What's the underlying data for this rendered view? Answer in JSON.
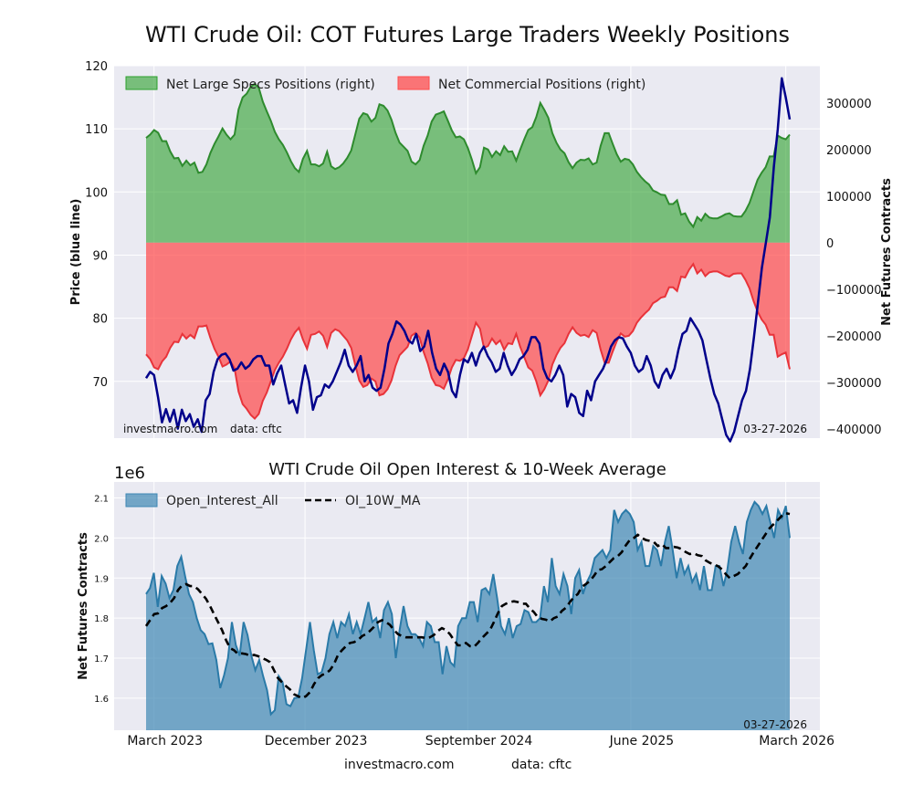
{
  "title": "WTI Crude Oil: COT Futures Large Traders Weekly Positions",
  "footer": {
    "site": "investmacro.com",
    "source": "data: cftc"
  },
  "colors": {
    "price": "#00008b",
    "specs": "#2ca02c",
    "commercial": "#ff4c4c",
    "open_interest": "#3f88b4",
    "ma": "#000000",
    "panel": "#eaeaf2"
  },
  "chart_data": [
    {
      "type": "area",
      "name": "positions",
      "title": "",
      "xlabel": "",
      "ylabel_left": "Price (blue line)",
      "ylabel_right": "Net Futures Contracts",
      "left_ylim": [
        61,
        120
      ],
      "left_ticks": [
        70,
        80,
        90,
        100,
        110,
        120
      ],
      "right_ylim": [
        -420000,
        380000
      ],
      "right_ticks": [
        -400000,
        -300000,
        -200000,
        -100000,
        0,
        100000,
        200000,
        300000
      ],
      "right_tick_labels": [
        "−400000",
        "−300000",
        "−200000",
        "−100000",
        "0",
        "100000",
        "200000",
        "300000"
      ],
      "grid": true,
      "legend_placement": "top-left",
      "annotations": {
        "site": "investmacro.com",
        "source": "data: cftc",
        "date": "03-27-2026"
      },
      "x_range_weeks": [
        0,
        162
      ],
      "series": [
        {
          "name": "Net Large Specs Positions (right)",
          "axis": "right",
          "values": [
            225000,
            232000,
            242000,
            236000,
            218000,
            218000,
            196000,
            181000,
            182000,
            165000,
            176000,
            166000,
            172000,
            150000,
            152000,
            168000,
            193000,
            212000,
            228000,
            245000,
            232000,
            222000,
            232000,
            286000,
            312000,
            320000,
            335000,
            341000,
            333000,
            303000,
            282000,
            262000,
            238000,
            222000,
            210000,
            194000,
            175000,
            160000,
            152000,
            180000,
            197000,
            168000,
            168000,
            164000,
            170000,
            195000,
            164000,
            158000,
            162000,
            170000,
            182000,
            198000,
            232000,
            266000,
            278000,
            275000,
            260000,
            268000,
            297000,
            294000,
            284000,
            264000,
            236000,
            215000,
            206000,
            197000,
            174000,
            168000,
            177000,
            208000,
            230000,
            260000,
            275000,
            278000,
            282000,
            262000,
            241000,
            226000,
            228000,
            222000,
            203000,
            178000,
            149000,
            162000,
            204000,
            200000,
            184000,
            196000,
            188000,
            207000,
            195000,
            196000,
            176000,
            200000,
            222000,
            242000,
            248000,
            270000,
            300000,
            285000,
            268000,
            235000,
            215000,
            200000,
            192000,
            173000,
            160000,
            172000,
            178000,
            177000,
            181000,
            168000,
            172000,
            208000,
            235000,
            235000,
            212000,
            190000,
            174000,
            180000,
            178000,
            168000,
            152000,
            141000,
            132000,
            125000,
            112000,
            108000,
            103000,
            102000,
            83000,
            83000,
            91000,
            60000,
            63000,
            45000,
            34000,
            55000,
            47000,
            62000,
            54000,
            52000,
            52000,
            56000,
            61000,
            63000,
            57000,
            56000,
            56000,
            68000,
            85000,
            110000,
            135000,
            150000,
            162000,
            185000,
            185000,
            230000,
            225000,
            222000,
            232000
          ],
          "fill_to": 0
        },
        {
          "name": "Net Commercial Positions (right)",
          "axis": "right",
          "values": [
            -240000,
            -250000,
            -268000,
            -272000,
            -255000,
            -245000,
            -226000,
            -213000,
            -214000,
            -196000,
            -206000,
            -198000,
            -205000,
            -180000,
            -180000,
            -178000,
            -205000,
            -228000,
            -245000,
            -266000,
            -262000,
            -255000,
            -270000,
            -320000,
            -347000,
            -357000,
            -370000,
            -378000,
            -368000,
            -340000,
            -322000,
            -298000,
            -274000,
            -258000,
            -245000,
            -228000,
            -208000,
            -193000,
            -183000,
            -208000,
            -228000,
            -198000,
            -196000,
            -191000,
            -200000,
            -224000,
            -194000,
            -186000,
            -190000,
            -200000,
            -210000,
            -226000,
            -263000,
            -296000,
            -310000,
            -306000,
            -292000,
            -298000,
            -328000,
            -325000,
            -315000,
            -296000,
            -265000,
            -242000,
            -233000,
            -224000,
            -200000,
            -194000,
            -204000,
            -235000,
            -259000,
            -290000,
            -306000,
            -308000,
            -314000,
            -294000,
            -268000,
            -252000,
            -254000,
            -248000,
            -229000,
            -200000,
            -172000,
            -185000,
            -226000,
            -222000,
            -206000,
            -218000,
            -210000,
            -230000,
            -216000,
            -218000,
            -196000,
            -224000,
            -246000,
            -268000,
            -275000,
            -298000,
            -328000,
            -315000,
            -296000,
            -262000,
            -242000,
            -226000,
            -216000,
            -196000,
            -182000,
            -194000,
            -200000,
            -198000,
            -203000,
            -188000,
            -194000,
            -230000,
            -258000,
            -258000,
            -234000,
            -212000,
            -195000,
            -202000,
            -200000,
            -190000,
            -172000,
            -161000,
            -152000,
            -144000,
            -130000,
            -125000,
            -118000,
            -116000,
            -96000,
            -96000,
            -104000,
            -73000,
            -75000,
            -58000,
            -46000,
            -66000,
            -58000,
            -72000,
            -64000,
            -62000,
            -62000,
            -66000,
            -71000,
            -73000,
            -67000,
            -66000,
            -66000,
            -80000,
            -98000,
            -125000,
            -148000,
            -165000,
            -176000,
            -198000,
            -198000,
            -245000,
            -240000,
            -236000,
            -272000
          ],
          "fill_to": 0
        },
        {
          "name": "Price",
          "axis": "left",
          "values": [
            70.5,
            71.5,
            71.0,
            67.5,
            63.5,
            65.6,
            63.6,
            65.5,
            62.5,
            65.5,
            63.7,
            64.8,
            62.8,
            64.0,
            62.0,
            67.0,
            68.0,
            71.5,
            73.5,
            74.2,
            74.4,
            73.5,
            71.7,
            72.0,
            73.0,
            72.0,
            72.5,
            73.5,
            74.0,
            74.0,
            72.5,
            72.5,
            69.5,
            71.3,
            72.5,
            69.5,
            66.5,
            67.0,
            65.0,
            69.0,
            72.5,
            70.0,
            65.5,
            67.5,
            67.8,
            69.5,
            69.0,
            70.0,
            71.5,
            73.0,
            75.0,
            72.5,
            71.5,
            72.5,
            74.0,
            70.0,
            71.0,
            69.0,
            68.5,
            69.0,
            72.0,
            76.0,
            77.5,
            79.5,
            79.0,
            78.0,
            76.5,
            76.0,
            77.5,
            74.8,
            75.5,
            78.0,
            74.5,
            72.0,
            71.0,
            72.8,
            71.5,
            68.5,
            67.5,
            71.0,
            73.5,
            73.0,
            74.5,
            72.5,
            74.5,
            75.5,
            74.0,
            73.0,
            71.5,
            72.0,
            74.5,
            72.5,
            71.0,
            72.0,
            73.5,
            74.0,
            75.0,
            77.0,
            77.0,
            76.0,
            72.0,
            70.5,
            70.0,
            71.0,
            72.5,
            71.0,
            66.0,
            68.0,
            67.5,
            65.0,
            64.5,
            68.5,
            67.0,
            70.0,
            71.0,
            72.0,
            73.5,
            75.5,
            76.5,
            77.0,
            76.8,
            75.5,
            74.5,
            72.5,
            71.5,
            72.0,
            74.0,
            72.5,
            70.0,
            69.0,
            71.0,
            72.0,
            70.5,
            72.0,
            75.0,
            77.5,
            78.0,
            80.0,
            79.0,
            78.0,
            76.5,
            73.5,
            70.5,
            68.0,
            66.5,
            64.0,
            61.5,
            60.5,
            62.0,
            64.5,
            67.0,
            68.5,
            72.0,
            77.0,
            82.5,
            88.0,
            92.0,
            96.0,
            104.0,
            110.0,
            118.0,
            115.0,
            111.5
          ]
        }
      ]
    },
    {
      "type": "area",
      "name": "open_interest",
      "title": "WTI Crude Oil Open Interest & 10-Week Average",
      "offset_label": "1e6",
      "ylabel": "Net Futures Contracts",
      "ylim": [
        1.52,
        2.14
      ],
      "y_ticks": [
        1.6,
        1.7,
        1.8,
        1.9,
        2.0,
        2.1
      ],
      "grid": true,
      "legend_placement": "top-left",
      "annotations": {
        "date": "03-27-2026"
      },
      "x_ticks": [
        {
          "label": "March 2023",
          "week": 2
        },
        {
          "label": "December 2023",
          "week": 40
        },
        {
          "label": "September 2024",
          "week": 81
        },
        {
          "label": "June 2025",
          "week": 122
        },
        {
          "label": "March 2026",
          "week": 161
        }
      ],
      "x_range_weeks": [
        0,
        162
      ],
      "series": [
        {
          "name": "Open_Interest_All",
          "values": [
            1.86,
            1.875,
            1.913,
            1.828,
            1.905,
            1.886,
            1.85,
            1.87,
            1.93,
            1.953,
            1.905,
            1.86,
            1.84,
            1.8,
            1.77,
            1.76,
            1.735,
            1.737,
            1.696,
            1.625,
            1.658,
            1.7,
            1.79,
            1.733,
            1.706,
            1.79,
            1.758,
            1.705,
            1.67,
            1.695,
            1.655,
            1.62,
            1.56,
            1.57,
            1.655,
            1.64,
            1.585,
            1.58,
            1.6,
            1.602,
            1.65,
            1.72,
            1.79,
            1.72,
            1.66,
            1.665,
            1.7,
            1.76,
            1.79,
            1.75,
            1.79,
            1.78,
            1.81,
            1.76,
            1.79,
            1.76,
            1.8,
            1.84,
            1.79,
            1.8,
            1.75,
            1.82,
            1.84,
            1.81,
            1.7,
            1.77,
            1.83,
            1.78,
            1.76,
            1.76,
            1.75,
            1.73,
            1.79,
            1.78,
            1.74,
            1.74,
            1.66,
            1.73,
            1.69,
            1.68,
            1.78,
            1.8,
            1.8,
            1.84,
            1.84,
            1.79,
            1.87,
            1.875,
            1.86,
            1.91,
            1.85,
            1.78,
            1.76,
            1.8,
            1.75,
            1.78,
            1.785,
            1.82,
            1.815,
            1.79,
            1.79,
            1.8,
            1.88,
            1.84,
            1.95,
            1.88,
            1.86,
            1.91,
            1.88,
            1.81,
            1.9,
            1.92,
            1.86,
            1.89,
            1.91,
            1.95,
            1.96,
            1.97,
            1.95,
            1.97,
            2.07,
            2.04,
            2.06,
            2.07,
            2.06,
            2.04,
            1.97,
            1.99,
            1.93,
            1.93,
            1.98,
            1.97,
            1.93,
            1.99,
            2.03,
            1.97,
            1.9,
            1.95,
            1.91,
            1.93,
            1.89,
            1.91,
            1.87,
            1.93,
            1.87,
            1.87,
            1.93,
            1.93,
            1.88,
            1.92,
            1.99,
            2.03,
            1.99,
            1.96,
            2.04,
            2.07,
            2.09,
            2.08,
            2.06,
            2.08,
            2.04,
            2.0,
            2.07,
            2.05,
            2.08,
            2.0
          ]
        },
        {
          "name": "OI_10W_MA",
          "values": [
            1.78,
            1.795,
            1.81,
            1.812,
            1.825,
            1.83,
            1.838,
            1.85,
            1.87,
            1.882,
            1.885,
            1.88,
            1.88,
            1.872,
            1.86,
            1.848,
            1.83,
            1.81,
            1.79,
            1.77,
            1.745,
            1.725,
            1.72,
            1.71,
            1.712,
            1.71,
            1.706,
            1.708,
            1.705,
            1.7,
            1.696,
            1.69,
            1.67,
            1.65,
            1.64,
            1.63,
            1.622,
            1.61,
            1.605,
            1.6,
            1.605,
            1.615,
            1.635,
            1.65,
            1.658,
            1.662,
            1.67,
            1.685,
            1.708,
            1.72,
            1.73,
            1.738,
            1.74,
            1.745,
            1.755,
            1.76,
            1.768,
            1.778,
            1.79,
            1.795,
            1.79,
            1.783,
            1.77,
            1.76,
            1.755,
            1.752,
            1.752,
            1.752,
            1.752,
            1.752,
            1.75,
            1.752,
            1.758,
            1.768,
            1.775,
            1.77,
            1.76,
            1.745,
            1.732,
            1.732,
            1.738,
            1.73,
            1.728,
            1.738,
            1.75,
            1.76,
            1.77,
            1.79,
            1.812,
            1.83,
            1.836,
            1.84,
            1.842,
            1.84,
            1.836,
            1.836,
            1.824,
            1.815,
            1.802,
            1.798,
            1.796,
            1.792,
            1.8,
            1.804,
            1.818,
            1.826,
            1.84,
            1.852,
            1.86,
            1.878,
            1.885,
            1.893,
            1.905,
            1.92,
            1.922,
            1.93,
            1.94,
            1.95,
            1.955,
            1.965,
            1.982,
            1.995,
            2.0,
            2.008,
            2.0,
            1.995,
            1.993,
            1.99,
            1.98,
            1.985,
            1.975,
            1.975,
            1.978,
            1.976,
            1.972,
            1.965,
            1.96,
            1.962,
            1.957,
            1.955,
            1.944,
            1.938,
            1.934,
            1.93,
            1.922,
            1.91,
            1.9,
            1.905,
            1.91,
            1.92,
            1.93,
            1.948,
            1.965,
            1.98,
            1.995,
            2.01,
            2.025,
            2.035,
            2.045,
            2.055,
            2.062,
            2.06
          ]
        }
      ]
    }
  ]
}
